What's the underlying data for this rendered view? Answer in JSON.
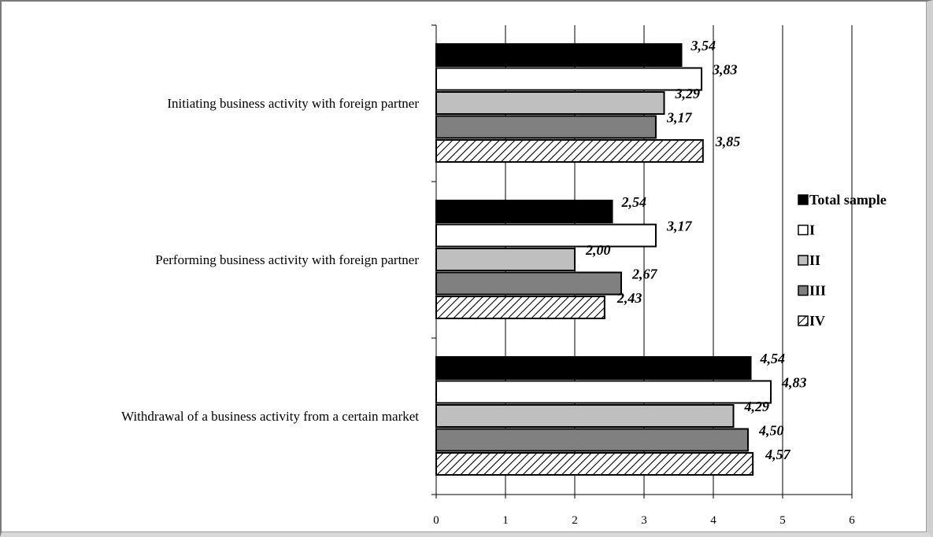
{
  "chart_data": {
    "type": "bar",
    "orientation": "horizontal",
    "title": "",
    "xlabel": "",
    "ylabel": "",
    "xlim": [
      0,
      6
    ],
    "x_ticks": [
      0,
      1,
      2,
      3,
      4,
      5,
      6
    ],
    "x_tick_labels": [
      "0",
      "1",
      "2",
      "3",
      "4",
      "5",
      "6"
    ],
    "grid": "vertical",
    "legend_position": "right",
    "categories": [
      "Initiating business activity with foreign partner",
      "Performing business activity with foreign partner",
      "Withdrawal of a business activity from a certain market"
    ],
    "series": [
      {
        "name": "Total sample",
        "fill": "#000000",
        "pattern": "solid",
        "values": [
          3.54,
          2.54,
          4.54
        ],
        "labels": [
          "3,54",
          "2,54",
          "4,54"
        ]
      },
      {
        "name": "I",
        "fill": "#ffffff",
        "pattern": "solid",
        "values": [
          3.83,
          3.17,
          4.83
        ],
        "labels": [
          "3,83",
          "3,17",
          "4,83"
        ]
      },
      {
        "name": "II",
        "fill": "#bfbfbf",
        "pattern": "solid",
        "values": [
          3.29,
          2.0,
          4.29
        ],
        "labels": [
          "3,29",
          "2,00",
          "4,29"
        ]
      },
      {
        "name": "III",
        "fill": "#808080",
        "pattern": "solid",
        "values": [
          3.17,
          2.67,
          4.5
        ],
        "labels": [
          "3,17",
          "2,67",
          "4,50"
        ]
      },
      {
        "name": "IV",
        "fill": "#ffffff",
        "pattern": "diagonal-hatch",
        "values": [
          3.85,
          2.43,
          4.57
        ],
        "labels": [
          "3,85",
          "2,43",
          "4,57"
        ]
      }
    ]
  }
}
